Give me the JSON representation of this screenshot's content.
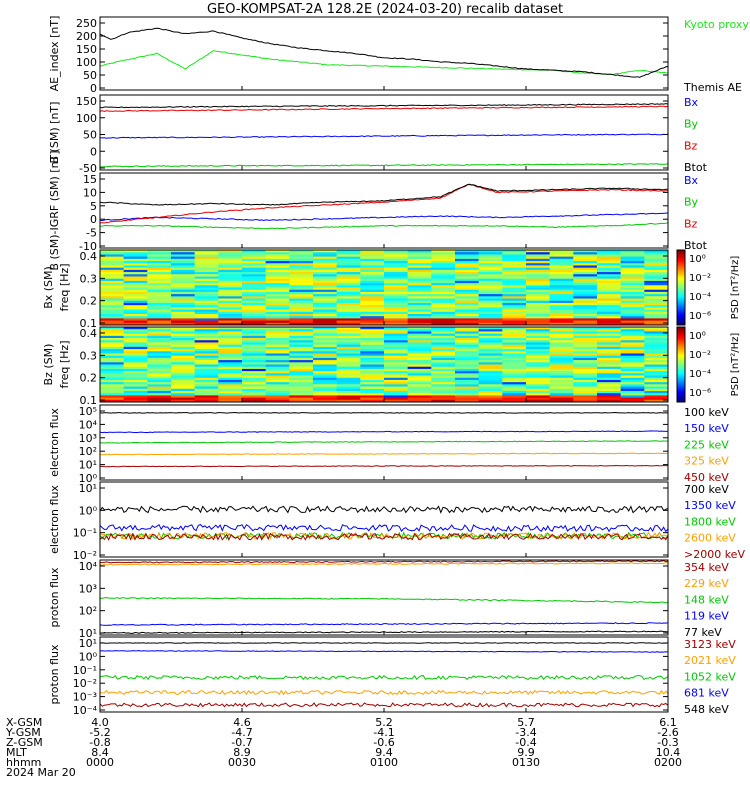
{
  "title": "GEO-KOMPSAT-2A 128.2E (2024-03-20) recalib dataset",
  "colors": {
    "black": "#000000",
    "green": "#00c800",
    "bright_green": "#19e619",
    "blue": "#0000ff",
    "red": "#e60000",
    "orange": "#ffa000",
    "darkred": "#a00000"
  },
  "chart_data": [
    {
      "type": "line",
      "ylabel": "AE_index [nT]",
      "yticks": [
        "250",
        "200",
        "150",
        "100",
        "50",
        "0"
      ],
      "ylim": [
        0,
        260
      ],
      "series": [
        {
          "name": "Kyoto proxy AE",
          "color": "#19e619",
          "x": [
            0,
            0.03,
            0.1,
            0.15,
            0.2,
            0.25,
            0.3,
            0.35,
            0.4,
            0.5,
            0.6,
            0.7,
            0.8,
            0.85,
            0.9,
            0.95,
            1.0
          ],
          "y": [
            85,
            100,
            130,
            75,
            140,
            125,
            110,
            100,
            90,
            85,
            80,
            75,
            70,
            60,
            55,
            70,
            60
          ]
        },
        {
          "name": "Themis AE",
          "color": "#000000",
          "x": [
            0,
            0.02,
            0.05,
            0.1,
            0.15,
            0.2,
            0.25,
            0.3,
            0.35,
            0.4,
            0.45,
            0.5,
            0.55,
            0.6,
            0.65,
            0.7,
            0.75,
            0.8,
            0.85,
            0.9,
            0.95,
            1.0
          ],
          "y": [
            200,
            180,
            205,
            220,
            200,
            210,
            185,
            165,
            150,
            140,
            130,
            115,
            110,
            100,
            95,
            85,
            75,
            70,
            65,
            55,
            45,
            85
          ]
        }
      ]
    },
    {
      "type": "line",
      "ylabel": "B (SM) [nT]",
      "yticks": [
        "150",
        "100",
        "50",
        "0",
        "-50"
      ],
      "ylim": [
        -60,
        150
      ],
      "series": [
        {
          "name": "Bx",
          "color": "#0000ff",
          "x": [
            0,
            0.25,
            0.5,
            0.75,
            1.0
          ],
          "y": [
            30,
            32,
            35,
            38,
            40
          ]
        },
        {
          "name": "By",
          "color": "#00c800",
          "x": [
            0,
            0.25,
            0.5,
            0.75,
            1.0
          ],
          "y": [
            -50,
            -48,
            -47,
            -45,
            -43
          ]
        },
        {
          "name": "Bz",
          "color": "#e60000",
          "x": [
            0,
            0.25,
            0.5,
            0.75,
            1.0
          ],
          "y": [
            105,
            108,
            112,
            115,
            118
          ]
        },
        {
          "name": "Btot",
          "color": "#000000",
          "x": [
            0,
            0.25,
            0.5,
            0.75,
            1.0
          ],
          "y": [
            115,
            118,
            120,
            122,
            125
          ]
        }
      ]
    },
    {
      "type": "line",
      "ylabel": "B (SM)-IGRF (SM) [nT]",
      "yticks": [
        "15",
        "10",
        "5",
        "0",
        "-5",
        "-10"
      ],
      "ylim": [
        -12,
        15
      ],
      "series": [
        {
          "name": "Bx",
          "color": "#0000ff",
          "x": [
            0,
            0.1,
            0.2,
            0.3,
            0.4,
            0.5,
            0.6,
            0.7,
            0.8,
            0.9,
            1.0
          ],
          "y": [
            -2,
            -1,
            -1.5,
            -2,
            -1.5,
            -1,
            -0.5,
            -1,
            -0.5,
            0,
            0.5
          ]
        },
        {
          "name": "By",
          "color": "#00c800",
          "x": [
            0,
            0.1,
            0.2,
            0.3,
            0.4,
            0.5,
            0.6,
            0.7,
            0.8,
            0.9,
            1.0
          ],
          "y": [
            -4,
            -4,
            -4.5,
            -5,
            -4.5,
            -4,
            -4,
            -4,
            -4.5,
            -4,
            -3
          ]
        },
        {
          "name": "Bz",
          "color": "#e60000",
          "x": [
            0,
            0.1,
            0.2,
            0.3,
            0.4,
            0.5,
            0.6,
            0.65,
            0.7,
            0.8,
            0.9,
            1.0
          ],
          "y": [
            -3,
            -1,
            1,
            2.5,
            3.5,
            4.5,
            6,
            11,
            8,
            8.5,
            9,
            8.5
          ]
        },
        {
          "name": "Btot",
          "color": "#000000",
          "x": [
            0,
            0.1,
            0.2,
            0.3,
            0.4,
            0.5,
            0.6,
            0.65,
            0.7,
            0.8,
            0.9,
            1.0
          ],
          "y": [
            4.5,
            3.5,
            4,
            3.5,
            4.5,
            5,
            6.5,
            11,
            8.5,
            9,
            9.5,
            9
          ]
        }
      ]
    },
    {
      "type": "heatmap",
      "ylabel": "Bx (SM)",
      "ylabel2": "freq [Hz]",
      "yticks": [
        "0.4",
        "0.3",
        "0.2",
        "0.1"
      ],
      "ylim": [
        0.05,
        0.5
      ],
      "colorbar_label": "PSD [nT²/Hz]",
      "colorbar_ticks": [
        "10⁰",
        "10⁻²",
        "10⁻⁴",
        "10⁻⁶"
      ]
    },
    {
      "type": "heatmap",
      "ylabel": "Bz (SM)",
      "ylabel2": "freq [Hz]",
      "yticks": [
        "0.4",
        "0.3",
        "0.2",
        "0.1"
      ],
      "ylim": [
        0.05,
        0.5
      ],
      "colorbar_label": "PSD [nT²/Hz]",
      "colorbar_ticks": [
        "10⁰",
        "10⁻²",
        "10⁻⁴",
        "10⁻⁶"
      ]
    },
    {
      "type": "line",
      "ylabel": "electron flux",
      "log": true,
      "yticks": [
        "10⁵",
        "10⁴",
        "10³",
        "10²",
        "10¹",
        "10⁰"
      ],
      "ylim": [
        1,
        100000
      ],
      "series": [
        {
          "name": "100 keV",
          "color": "#000000",
          "x": [
            0,
            1
          ],
          "y": [
            30000,
            30000
          ]
        },
        {
          "name": "150 keV",
          "color": "#0000ff",
          "x": [
            0,
            1
          ],
          "y": [
            1500,
            1800
          ]
        },
        {
          "name": "225 keV",
          "color": "#00c800",
          "x": [
            0,
            1
          ],
          "y": [
            300,
            400
          ]
        },
        {
          "name": "325 keV",
          "color": "#ffa000",
          "x": [
            0,
            1
          ],
          "y": [
            50,
            60
          ]
        },
        {
          "name": "450 keV",
          "color": "#a00000",
          "x": [
            0,
            1
          ],
          "y": [
            8,
            9
          ]
        }
      ]
    },
    {
      "type": "line",
      "ylabel": "electron flux",
      "log": true,
      "yticks": [
        "10¹",
        "10⁰",
        "10⁻¹",
        "10⁻²"
      ],
      "ylim": [
        0.01,
        10
      ],
      "series": [
        {
          "name": "700 keV",
          "color": "#000000",
          "x": [
            0,
            1
          ],
          "y": [
            0.8,
            0.8
          ]
        },
        {
          "name": "1350 keV",
          "color": "#0000ff",
          "x": [
            0,
            1
          ],
          "y": [
            0.15,
            0.14
          ]
        },
        {
          "name": "1800 keV",
          "color": "#00c800",
          "x": [
            0,
            1
          ],
          "y": [
            0.07,
            0.07
          ]
        },
        {
          "name": "2600 keV",
          "color": "#ffa000",
          "x": [
            0,
            1
          ],
          "y": [
            0.07,
            0.07
          ]
        },
        {
          "name": ">2000 keV",
          "color": "#a00000",
          "x": [
            0,
            1
          ],
          "y": [
            0.065,
            0.065
          ]
        }
      ]
    },
    {
      "type": "line",
      "ylabel": "proton flux",
      "log": true,
      "yticks": [
        "10⁴",
        "10³",
        "10²",
        "10¹"
      ],
      "ylim": [
        10,
        10000
      ],
      "series": [
        {
          "name": "354 keV",
          "color": "#a00000",
          "x": [
            0,
            1
          ],
          "y": [
            8000,
            9000
          ]
        },
        {
          "name": "229 keV",
          "color": "#ffa000",
          "x": [
            0,
            1
          ],
          "y": [
            6500,
            7500
          ]
        },
        {
          "name": "148 keV",
          "color": "#00c800",
          "x": [
            0,
            0.5,
            1
          ],
          "y": [
            300,
            280,
            200
          ]
        },
        {
          "name": "119 keV",
          "color": "#0000ff",
          "x": [
            0,
            1
          ],
          "y": [
            25,
            30
          ]
        },
        {
          "name": "77 keV",
          "color": "#000000",
          "x": [
            0,
            1
          ],
          "y": [
            12,
            14
          ]
        }
      ]
    },
    {
      "type": "line",
      "ylabel": "proton flux",
      "log": true,
      "yticks": [
        "10¹",
        "10⁰",
        "10⁻¹",
        "10⁻²",
        "10⁻³",
        "10⁻⁴"
      ],
      "ylim": [
        0.0001,
        10
      ],
      "series": [
        {
          "name": "3123 keV",
          "color": "#a00000",
          "x": [
            0,
            1
          ],
          "y": [
            0.0003,
            0.0003
          ]
        },
        {
          "name": "2021 keV",
          "color": "#ffa000",
          "x": [
            0,
            1
          ],
          "y": [
            0.002,
            0.002
          ]
        },
        {
          "name": "1052 keV",
          "color": "#00c800",
          "x": [
            0,
            1
          ],
          "y": [
            0.02,
            0.02
          ]
        },
        {
          "name": "681 keV",
          "color": "#0000ff",
          "x": [
            0,
            1
          ],
          "y": [
            1.2,
            1.0
          ]
        },
        {
          "name": "548 keV",
          "color": "#000000",
          "x": [
            0,
            1
          ],
          "y": [
            4,
            4
          ]
        }
      ]
    }
  ],
  "ephemeris": {
    "labels": [
      "X-GSM",
      "Y-GSM",
      "Z-GSM",
      "MLT",
      "hhmm",
      "2024 Mar 20"
    ],
    "columns": [
      [
        "4.0",
        "-5.2",
        "-0.8",
        "8.4",
        "0000"
      ],
      [
        "4.6",
        "-4.7",
        "-0.7",
        "8.9",
        "0030"
      ],
      [
        "5.2",
        "-4.1",
        "-0.6",
        "9.4",
        "0100"
      ],
      [
        "5.7",
        "-3.4",
        "-0.4",
        "9.9",
        "0130"
      ],
      [
        "6.1",
        "-2.6",
        "-0.3",
        "10.4",
        "0200"
      ]
    ]
  }
}
